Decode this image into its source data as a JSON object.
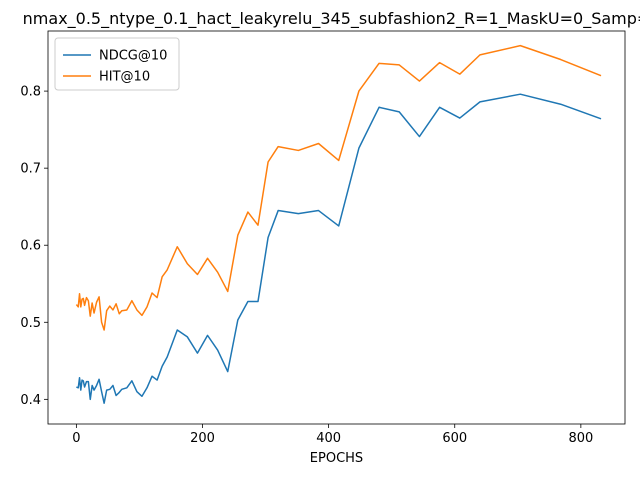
{
  "chart_data": {
    "type": "line",
    "title": "nmax_0.5_ntype_0.1_hact_leakyrelu_345_subfashion2_R=1_MaskU=0_Samp=",
    "xlabel": "EPOCHS",
    "ylabel": "",
    "xlim": [
      -45,
      870
    ],
    "ylim": [
      0.368,
      0.878
    ],
    "xticks": [
      0,
      200,
      400,
      600,
      800
    ],
    "yticks": [
      0.4,
      0.5,
      0.6,
      0.7,
      0.8
    ],
    "ytick_labels": [
      "0.4",
      "0.5",
      "0.6",
      "0.7",
      "0.8"
    ],
    "legend_position": "top-left",
    "grid": false,
    "series": [
      {
        "name": "NDCG@10",
        "color": "#1f77b4",
        "x": [
          0,
          3,
          5,
          7,
          9,
          11,
          13,
          16,
          19,
          22,
          25,
          28,
          32,
          36,
          40,
          44,
          48,
          53,
          58,
          63,
          68,
          72,
          80,
          88,
          96,
          104,
          112,
          120,
          128,
          136,
          144,
          160,
          176,
          192,
          208,
          224,
          240,
          256,
          272,
          288,
          304,
          320,
          352,
          384,
          416,
          448,
          480,
          512,
          544,
          576,
          608,
          640,
          704,
          768,
          832
        ],
        "y": [
          0.416,
          0.415,
          0.428,
          0.412,
          0.425,
          0.424,
          0.416,
          0.423,
          0.423,
          0.4,
          0.418,
          0.412,
          0.418,
          0.426,
          0.41,
          0.395,
          0.412,
          0.413,
          0.418,
          0.405,
          0.409,
          0.413,
          0.415,
          0.424,
          0.41,
          0.404,
          0.415,
          0.43,
          0.425,
          0.443,
          0.455,
          0.49,
          0.481,
          0.46,
          0.483,
          0.464,
          0.436,
          0.503,
          0.527,
          0.527,
          0.61,
          0.645,
          0.641,
          0.645,
          0.625,
          0.726,
          0.779,
          0.773,
          0.741,
          0.779,
          0.765,
          0.786,
          0.796,
          0.783,
          0.764
        ]
      },
      {
        "name": "HIT@10",
        "color": "#ff7f0e",
        "x": [
          0,
          3,
          5,
          7,
          9,
          11,
          13,
          16,
          19,
          22,
          25,
          28,
          32,
          36,
          40,
          44,
          48,
          53,
          58,
          63,
          68,
          72,
          80,
          88,
          96,
          104,
          112,
          120,
          128,
          136,
          144,
          160,
          176,
          192,
          208,
          224,
          240,
          256,
          272,
          288,
          304,
          320,
          352,
          384,
          416,
          448,
          480,
          512,
          544,
          576,
          608,
          640,
          704,
          768,
          832
        ],
        "y": [
          0.523,
          0.52,
          0.537,
          0.52,
          0.53,
          0.531,
          0.522,
          0.532,
          0.528,
          0.508,
          0.525,
          0.512,
          0.526,
          0.533,
          0.5,
          0.49,
          0.515,
          0.521,
          0.516,
          0.524,
          0.511,
          0.515,
          0.516,
          0.528,
          0.516,
          0.509,
          0.52,
          0.538,
          0.532,
          0.559,
          0.568,
          0.598,
          0.576,
          0.562,
          0.583,
          0.565,
          0.54,
          0.613,
          0.643,
          0.626,
          0.708,
          0.728,
          0.723,
          0.732,
          0.71,
          0.8,
          0.836,
          0.834,
          0.813,
          0.837,
          0.822,
          0.847,
          0.859,
          0.841,
          0.82
        ]
      }
    ]
  }
}
